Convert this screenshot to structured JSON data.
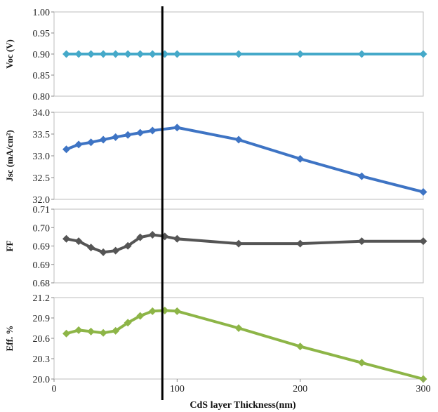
{
  "chart_data": {
    "type": "line",
    "xlabel": "CdS  layer Thickness(nm)",
    "xlim": [
      0,
      300
    ],
    "xticks": [
      "0",
      "100",
      "200",
      "300"
    ],
    "marker_line_x": 88,
    "panels": [
      {
        "ylabel": "Voc (V)",
        "ylim": [
          0.8,
          1.0
        ],
        "yticks": [
          "0.80",
          "0.85",
          "0.90",
          "0.95",
          "1.00"
        ],
        "color": "#45A9C9",
        "x": [
          10,
          20,
          30,
          40,
          50,
          60,
          70,
          80,
          90,
          100,
          150,
          200,
          250,
          300
        ],
        "values": [
          0.9,
          0.9,
          0.9,
          0.9,
          0.9,
          0.9,
          0.9,
          0.9,
          0.9,
          0.9,
          0.9,
          0.9,
          0.9,
          0.9
        ]
      },
      {
        "ylabel": "Jsc (mA/cm²)",
        "ylim": [
          32.0,
          34.0
        ],
        "yticks": [
          "32.0",
          "32.5",
          "33.0",
          "33.5",
          "34.0"
        ],
        "color": "#3E74C4",
        "x": [
          10,
          20,
          30,
          40,
          50,
          60,
          70,
          80,
          100,
          150,
          200,
          250,
          300
        ],
        "values": [
          33.15,
          33.26,
          33.31,
          33.37,
          33.43,
          33.48,
          33.53,
          33.58,
          33.65,
          33.37,
          32.93,
          32.53,
          32.17
        ]
      },
      {
        "ylabel": "FF",
        "ylim": [
          0.68,
          0.72
        ],
        "yticks": [
          "0.68",
          "0.69",
          "0.69",
          "0.70",
          "0.71"
        ],
        "color": "#555555",
        "x": [
          10,
          20,
          30,
          40,
          50,
          60,
          70,
          80,
          90,
          100,
          150,
          200,
          250,
          300
        ],
        "values": [
          0.7039,
          0.7026,
          0.6992,
          0.6966,
          0.6975,
          0.7001,
          0.7047,
          0.7061,
          0.7052,
          0.7039,
          0.7013,
          0.7013,
          0.7026,
          0.7026
        ]
      },
      {
        "ylabel": "Eff. %",
        "ylim": [
          20.0,
          21.2
        ],
        "yticks": [
          "20.0",
          "20.3",
          "20.6",
          "20.9",
          "21.2"
        ],
        "color": "#8DB547",
        "x": [
          10,
          20,
          30,
          40,
          50,
          60,
          70,
          80,
          90,
          100,
          150,
          200,
          250,
          300
        ],
        "values": [
          20.67,
          20.72,
          20.7,
          20.68,
          20.71,
          20.83,
          20.93,
          21.0,
          21.01,
          21.0,
          20.75,
          20.48,
          20.24,
          20.0
        ]
      }
    ]
  }
}
